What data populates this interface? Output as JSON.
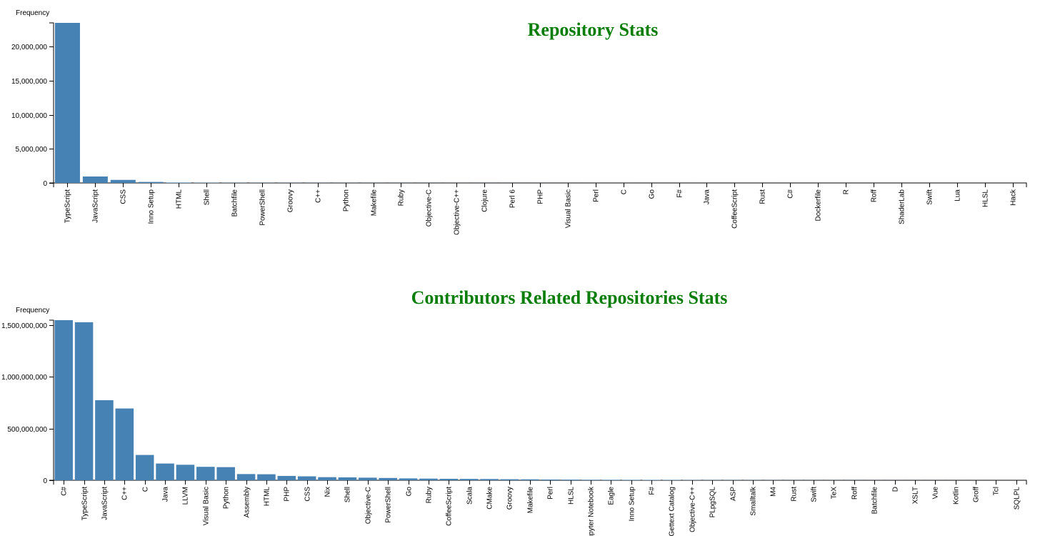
{
  "chart_data": [
    {
      "type": "bar",
      "title": "Repository Stats",
      "ylabel": "Frequency",
      "xlabel": "",
      "ylim": [
        0,
        23500000
      ],
      "yticks": [
        0,
        5000000,
        10000000,
        15000000,
        20000000
      ],
      "ytick_labels": [
        "0",
        "5,000,000",
        "10,000,000",
        "15,000,000",
        "20,000,000"
      ],
      "categories": [
        "TypeScript",
        "JavaScript",
        "CSS",
        "Inno Setup",
        "HTML",
        "Shell",
        "Batchfile",
        "PowerShell",
        "Groovy",
        "C++",
        "Python",
        "Makefile",
        "Ruby",
        "Objective-C",
        "Objective-C++",
        "Clojure",
        "Perl 6",
        "PHP",
        "Visual Basic",
        "Perl",
        "C",
        "Go",
        "F#",
        "Java",
        "CoffeeScript",
        "Rust",
        "C#",
        "Dockerfile",
        "R",
        "Roff",
        "ShaderLab",
        "Swift",
        "Lua",
        "HLSL",
        "Hack"
      ],
      "values": [
        23500000,
        950000,
        450000,
        150000,
        60000,
        40000,
        30000,
        25000,
        20000,
        18000,
        15000,
        12000,
        10000,
        8000,
        7000,
        6000,
        5000,
        4500,
        4000,
        3500,
        3000,
        2500,
        2000,
        1800,
        1500,
        1200,
        1000,
        800,
        600,
        500,
        400,
        300,
        200,
        150,
        100
      ],
      "grid": false,
      "legend": "none"
    },
    {
      "type": "bar",
      "title": "Contributors Related Repositories Stats",
      "ylabel": "Frequency",
      "xlabel": "",
      "ylim": [
        0,
        1550000000
      ],
      "yticks": [
        0,
        500000000,
        1000000000,
        1500000000
      ],
      "ytick_labels": [
        "0",
        "500,000,000",
        "1,000,000,000",
        "1,500,000,000"
      ],
      "categories": [
        "C#",
        "TypeScript",
        "JavaScript",
        "C++",
        "C",
        "Java",
        "LLVM",
        "Visual Basic",
        "Python",
        "Assembly",
        "HTML",
        "PHP",
        "CSS",
        "Nix",
        "Shell",
        "Objective-C",
        "PowerShell",
        "Go",
        "Ruby",
        "CoffeeScript",
        "Scala",
        "CMake",
        "Groovy",
        "Makefile",
        "Perl",
        "HLSL",
        "Jupyter Notebook",
        "Eagle",
        "Inno Setup",
        "F#",
        "Gettext Catalog",
        "Objective-C++",
        "PLpgSQL",
        "ASP",
        "Smalltalk",
        "M4",
        "Rust",
        "Swift",
        "TeX",
        "Roff",
        "Batchfile",
        "D",
        "XSLT",
        "Vue",
        "Kotlin",
        "Groff",
        "Tcl",
        "SQLPL"
      ],
      "values": [
        1550000000,
        1530000000,
        775000000,
        695000000,
        245000000,
        162000000,
        150000000,
        130000000,
        127000000,
        60000000,
        58000000,
        42000000,
        38000000,
        30000000,
        28000000,
        25000000,
        22000000,
        18000000,
        16000000,
        14000000,
        13000000,
        12000000,
        10000000,
        9000000,
        7000000,
        6000000,
        5000000,
        4500000,
        4000000,
        3500000,
        3000000,
        2500000,
        2000000,
        1800000,
        1500000,
        1200000,
        1000000,
        900000,
        800000,
        700000,
        600000,
        500000,
        400000,
        300000,
        250000,
        200000,
        150000,
        100000
      ],
      "grid": false,
      "legend": "none"
    }
  ]
}
